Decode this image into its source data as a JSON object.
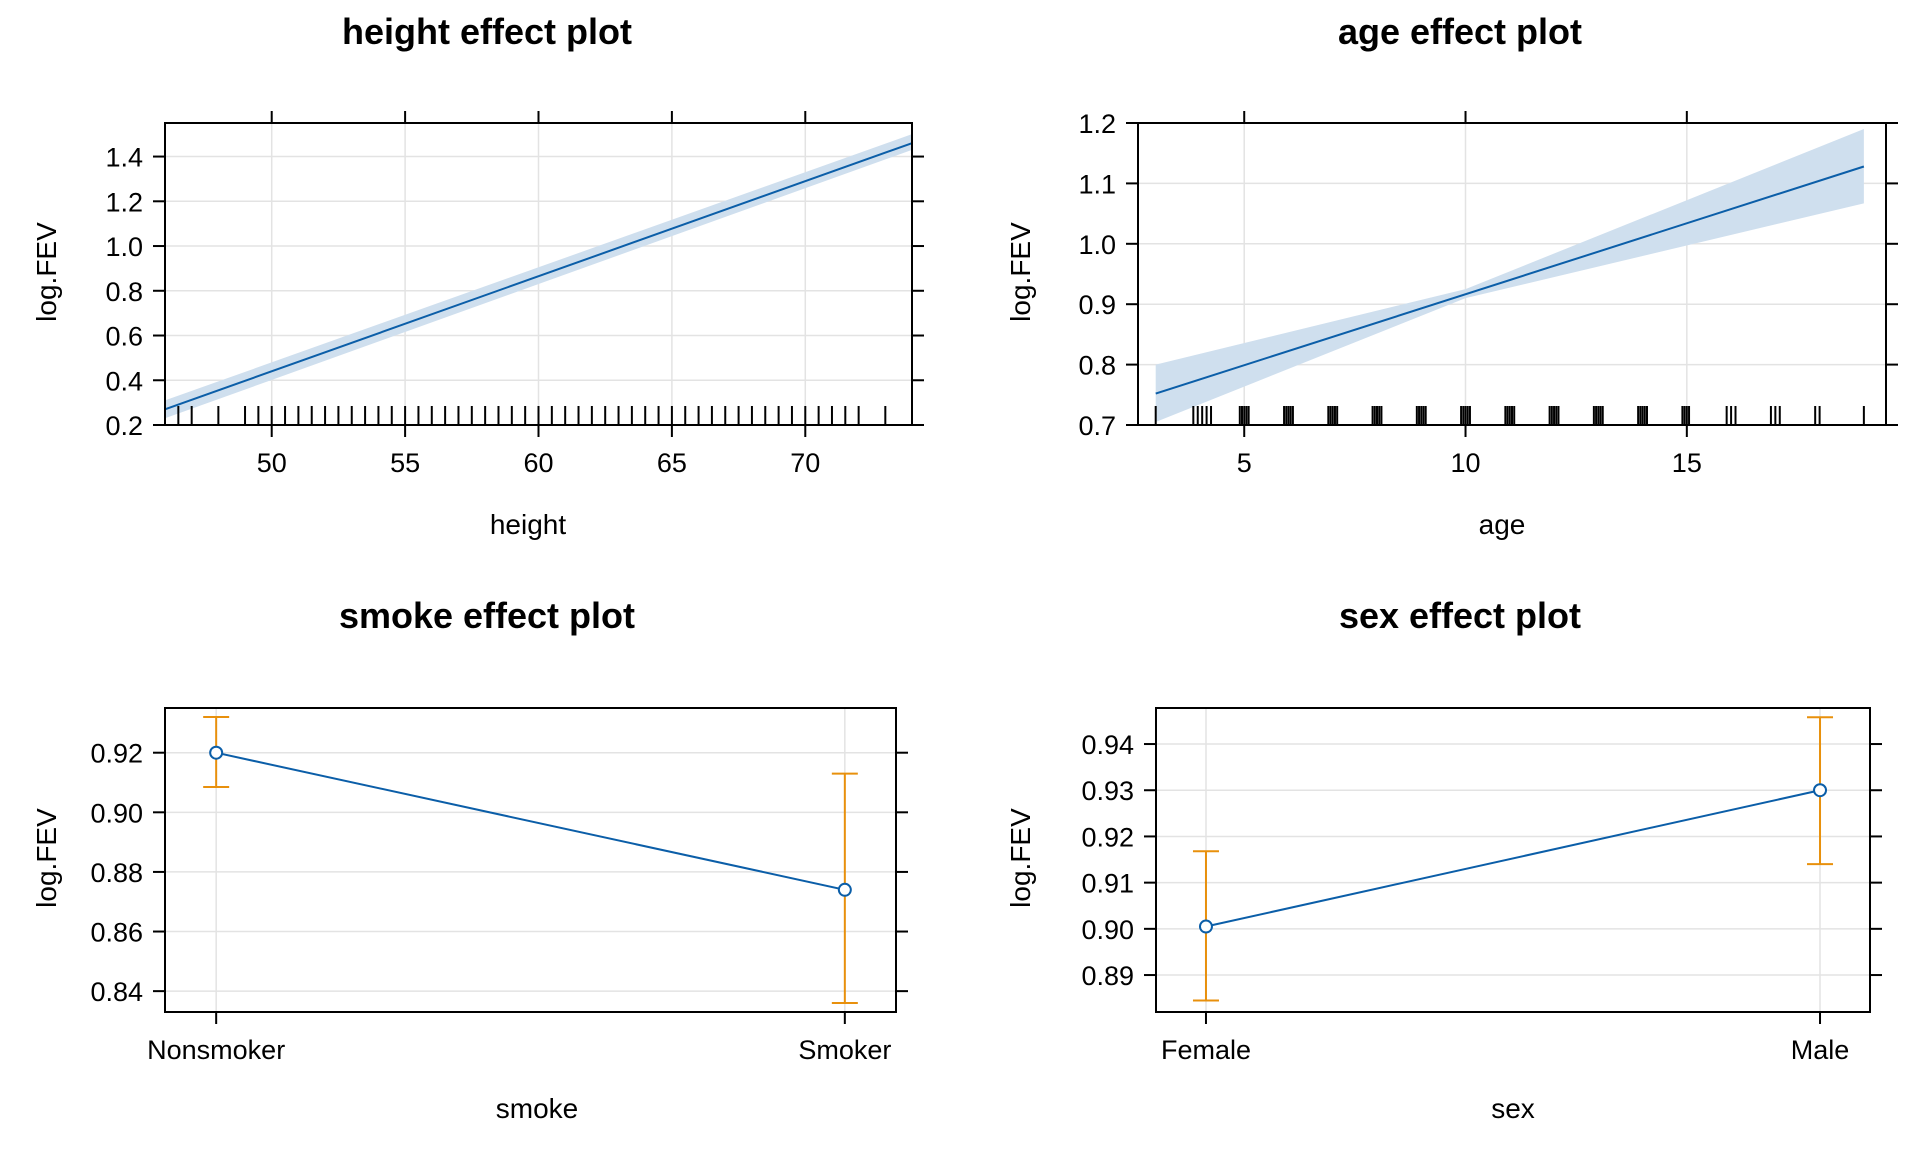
{
  "colors": {
    "line": "#0b5ea8",
    "band": "#cfdfee",
    "error_bar": "#e8900c",
    "grid": "#e3e3e3",
    "frame": "#000000"
  },
  "chart_data": [
    {
      "id": "height",
      "type": "line",
      "title": "height effect plot",
      "xlabel": "height",
      "ylabel": "log.FEV",
      "xlim": [
        46,
        74
      ],
      "ylim": [
        0.2,
        1.55
      ],
      "x_ticks": [
        50,
        55,
        60,
        65,
        70
      ],
      "y_ticks": [
        0.2,
        0.4,
        0.6,
        0.8,
        1.0,
        1.2,
        1.4
      ],
      "y_tick_labels": [
        "0.2",
        "0.4",
        "0.6",
        "0.8",
        "1.0",
        "1.2",
        "1.4"
      ],
      "grid": true,
      "line": {
        "x": [
          46,
          74
        ],
        "y": [
          0.27,
          1.46
        ]
      },
      "band": {
        "x": [
          46,
          74
        ],
        "lower": [
          0.23,
          1.43
        ],
        "upper": [
          0.31,
          1.5
        ]
      },
      "rug": [
        46,
        46.5,
        47,
        48,
        49,
        49.5,
        50,
        50.5,
        51,
        51.5,
        52,
        52.5,
        53,
        53.5,
        54,
        54.5,
        55,
        55.5,
        56,
        56.5,
        57,
        57.5,
        58,
        58.5,
        59,
        59.5,
        60,
        60.5,
        61,
        61.5,
        62,
        62.5,
        63,
        63.5,
        64,
        64.5,
        65,
        65.5,
        66,
        66.5,
        67,
        67.5,
        68,
        68.5,
        69,
        69.5,
        70,
        70.5,
        71,
        71.5,
        72,
        73,
        74
      ]
    },
    {
      "id": "age",
      "type": "line",
      "title": "age effect plot",
      "xlabel": "age",
      "ylabel": "log.FEV",
      "xlim": [
        2.6,
        19.5
      ],
      "ylim": [
        0.7,
        1.2
      ],
      "x_ticks": [
        5,
        10,
        15
      ],
      "y_ticks": [
        0.7,
        0.8,
        0.9,
        1.0,
        1.1,
        1.2
      ],
      "y_tick_labels": [
        "0.7",
        "0.8",
        "0.9",
        "1.0",
        "1.1",
        "1.2"
      ],
      "grid": true,
      "line": {
        "x": [
          3,
          19
        ],
        "y": [
          0.752,
          1.128
        ]
      },
      "band": {
        "x": [
          3,
          10,
          19
        ],
        "lower": [
          0.705,
          0.91,
          1.067
        ],
        "upper": [
          0.8,
          0.925,
          1.19
        ]
      },
      "rug": [
        3,
        3.85,
        3.95,
        4.05,
        4.15,
        4.25,
        4.9,
        4.95,
        5,
        5.05,
        5.1,
        5.9,
        5.95,
        6,
        6.05,
        6.1,
        6.9,
        6.95,
        7,
        7.05,
        7.1,
        7.9,
        7.95,
        8,
        8.05,
        8.1,
        8.9,
        8.95,
        9,
        9.05,
        9.1,
        9.9,
        9.95,
        10,
        10.05,
        10.1,
        10.9,
        10.95,
        11,
        11.05,
        11.1,
        11.9,
        11.95,
        12,
        12.05,
        12.1,
        12.9,
        12.95,
        13,
        13.05,
        13.1,
        13.9,
        13.95,
        14,
        14.05,
        14.1,
        14.9,
        14.95,
        15,
        15.05,
        15.9,
        16,
        16.1,
        16.9,
        17,
        17.1,
        17.9,
        18,
        19
      ]
    },
    {
      "id": "smoke",
      "type": "line",
      "title": "smoke effect plot",
      "xlabel": "smoke",
      "ylabel": "log.FEV",
      "categories": [
        "Nonsmoker",
        "Smoker"
      ],
      "ylim": [
        0.833,
        0.935
      ],
      "y_ticks": [
        0.84,
        0.86,
        0.88,
        0.9,
        0.92
      ],
      "y_tick_labels": [
        "0.84",
        "0.86",
        "0.88",
        "0.90",
        "0.92"
      ],
      "grid": true,
      "values": [
        0.92,
        0.874
      ],
      "lower": [
        0.9085,
        0.836
      ],
      "upper": [
        0.932,
        0.913
      ]
    },
    {
      "id": "sex",
      "type": "line",
      "title": "sex effect plot",
      "xlabel": "sex",
      "ylabel": "log.FEV",
      "categories": [
        "Female",
        "Male"
      ],
      "ylim": [
        0.882,
        0.9478
      ],
      "y_ticks": [
        0.89,
        0.9,
        0.91,
        0.92,
        0.93,
        0.94
      ],
      "y_tick_labels": [
        "0.89",
        "0.90",
        "0.91",
        "0.92",
        "0.93",
        "0.94"
      ],
      "grid": true,
      "values": [
        0.9005,
        0.93
      ],
      "lower": [
        0.8845,
        0.914
      ],
      "upper": [
        0.9168,
        0.9458
      ]
    }
  ]
}
